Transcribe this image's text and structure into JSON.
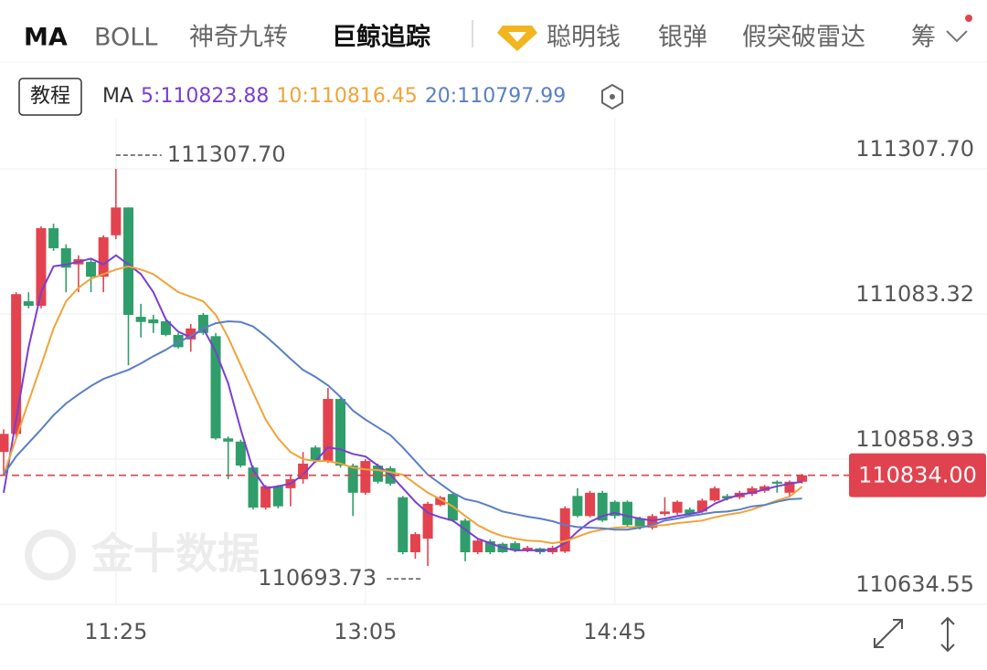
{
  "toolbar": {
    "tabs": [
      "MA",
      "BOLL",
      "神奇九转",
      "巨鲸追踪",
      "聪明钱",
      "银弹",
      "假突破雷达",
      "筹"
    ]
  },
  "legend_button": "教程",
  "watermark": "金十数据",
  "chart_data": {
    "type": "candlestick",
    "indicator": "MA",
    "categories": [
      null,
      null,
      null,
      null,
      null,
      null,
      null,
      null,
      null,
      "11:25",
      null,
      null,
      null,
      null,
      null,
      null,
      null,
      null,
      null,
      null,
      null,
      null,
      null,
      null,
      null,
      null,
      null,
      null,
      null,
      "13:05",
      null,
      null,
      null,
      null,
      null,
      null,
      null,
      null,
      null,
      null,
      null,
      null,
      null,
      null,
      null,
      null,
      null,
      null,
      null,
      "14:45",
      null,
      null,
      null,
      null,
      null,
      null,
      null,
      null,
      null,
      null,
      null,
      null,
      null,
      null,
      null
    ],
    "open": [
      110870,
      110898,
      111103,
      111096,
      111216,
      111185,
      111160,
      111164,
      111141,
      111205,
      111248,
      111079,
      111075,
      111072,
      111051,
      111044,
      111082,
      111049,
      110891,
      110886,
      110846,
      110784,
      110817,
      110814,
      110828,
      110877,
      110856,
      110952,
      110849,
      110807,
      110849,
      110845,
      110800,
      110715,
      110736,
      110788,
      110805,
      110764,
      110715,
      110732,
      110728,
      110729,
      110718,
      110721,
      110715,
      110716,
      110802,
      110771,
      110807,
      110793,
      110793,
      110767,
      110753,
      110774,
      110776,
      110781,
      110778,
      110795,
      110802,
      110800,
      110805,
      110810,
      110824,
      110807,
      110824
    ],
    "high": [
      110905,
      111117,
      111117,
      111219,
      111223,
      111191,
      111174,
      111168,
      111205,
      111307.7,
      111248,
      111099,
      111082,
      111075,
      111054,
      111068,
      111085,
      111054,
      110894,
      110889,
      110849,
      110819,
      110819,
      110835,
      110870,
      110880,
      110969,
      110955,
      110852,
      110859,
      110852,
      110848,
      110802,
      110746,
      110793,
      110802,
      110808,
      110767,
      110736,
      110735,
      110730,
      110732,
      110725,
      110722,
      110725,
      110786,
      110814,
      110810,
      110810,
      110795,
      110795,
      110770,
      110774,
      110800,
      110795,
      110784,
      110798,
      110817,
      110805,
      110810,
      110817,
      110819,
      110826,
      110826,
      110836
    ],
    "low": [
      110835,
      110891,
      111092,
      111092,
      111181,
      111117,
      111117,
      111117,
      111117,
      111199,
      111004,
      111047,
      111054,
      111049,
      111030,
      111025,
      111051,
      110889,
      110828,
      110846,
      110781,
      110781,
      110783,
      110786,
      110821,
      110853,
      110853,
      110846,
      110771,
      110804,
      110821,
      110818,
      110712,
      110705,
      110693.73,
      110786,
      110762,
      110701,
      110712,
      110712,
      110714,
      110715,
      110715,
      110712,
      110712,
      110714,
      110769,
      110769,
      110762,
      110767,
      110754,
      110750,
      110750,
      110771,
      110773,
      110771,
      110776,
      110793,
      110795,
      110797,
      110802,
      110807,
      110807,
      110800,
      110821
    ],
    "close": [
      110898,
      111114,
      111096,
      111216,
      111185,
      111155,
      111168,
      111141,
      111202,
      111248,
      111082,
      111071,
      111069,
      111051,
      111032,
      111061,
      111054,
      110891,
      110886,
      110849,
      110784,
      110817,
      110786,
      110828,
      110852,
      110856,
      110952,
      110849,
      110807,
      110856,
      110824,
      110821,
      110715,
      110743,
      110790,
      110800,
      110764,
      110715,
      110733,
      110715,
      110715,
      110718,
      110722,
      110715,
      110722,
      110783,
      110771,
      110807,
      110764,
      110771,
      110757,
      110753,
      110771,
      110778,
      110793,
      110774,
      110795,
      110814,
      110798,
      110807,
      110814,
      110817,
      110821,
      110824,
      110834
    ],
    "up_color": "#e2434f",
    "down_color": "#2f9e6a",
    "series": [
      {
        "name": "5:110823.88",
        "color": "#7a3fd1",
        "values": [
          110807,
          110920,
          111032,
          111117,
          111157,
          111160,
          111164,
          111169,
          111160,
          111174,
          111160,
          111145,
          111117,
          111075,
          111056,
          111047,
          111061,
          111025,
          110976,
          110905,
          110842,
          110814,
          110817,
          110821,
          110835,
          110856,
          110877,
          110874,
          110867,
          110863,
          110849,
          110835,
          110814,
          110793,
          110776,
          110769,
          110764,
          110750,
          110736,
          110729,
          110722,
          110718,
          110718,
          110718,
          110719,
          110729,
          110747,
          110762,
          110771,
          110776,
          110771,
          110767,
          110764,
          110767,
          110771,
          110774,
          110778,
          110790,
          110798,
          110804,
          110807,
          110812,
          110817,
          110821,
          110823.88
        ]
      },
      {
        "name": "10:110816.45",
        "color": "#efa43a",
        "values": [
          110835,
          110891,
          110948,
          111004,
          111061,
          111103,
          111124,
          111138,
          111145,
          111152,
          111157,
          111152,
          111145,
          111131,
          111117,
          111110,
          111103,
          111082,
          111047,
          111004,
          110962,
          110920,
          110891,
          110870,
          110859,
          110856,
          110856,
          110852,
          110846,
          110843,
          110842,
          110839,
          110835,
          110821,
          110807,
          110797,
          110786,
          110771,
          110757,
          110747,
          110740,
          110736,
          110733,
          110732,
          110729,
          110732,
          110739,
          110746,
          110750,
          110753,
          110754,
          110754,
          110756,
          110757,
          110760,
          110762,
          110764,
          110769,
          110773,
          110776,
          110781,
          110788,
          110795,
          110801,
          110816.45
        ]
      },
      {
        "name": "20:110797.99",
        "color": "#5a7fc6",
        "values": [
          110835,
          110863,
          110884,
          110905,
          110927,
          110945,
          110959,
          110972,
          110983,
          110990,
          110997,
          111007,
          111018,
          111028,
          111040,
          111049,
          111061,
          111069,
          111072,
          111071,
          111064,
          111049,
          111032,
          111014,
          110997,
          110986,
          110973,
          110955,
          110934,
          110920,
          110908,
          110896,
          110877,
          110856,
          110835,
          110821,
          110807,
          110797,
          110793,
          110786,
          110778,
          110774,
          110770,
          110767,
          110763,
          110757,
          110754,
          110753,
          110752,
          110750,
          110750,
          110753,
          110757,
          110764,
          110767,
          110771,
          110774,
          110777,
          110778,
          110781,
          110786,
          110788,
          110793,
          110797,
          110797.99
        ]
      }
    ],
    "ylim": [
      110634.55,
      111385.32
    ],
    "yticks": [
      {
        "value": 111307.7,
        "label": "111307.70"
      },
      111083.32,
      110858.93,
      110634.55
    ],
    "grid": true,
    "current_price": {
      "value": 110834,
      "label": "110834.00"
    },
    "annotations": [
      {
        "value": 111307.7,
        "label": "111307.70"
      },
      {
        "value": 110693.73,
        "label": "110693.73"
      }
    ]
  }
}
